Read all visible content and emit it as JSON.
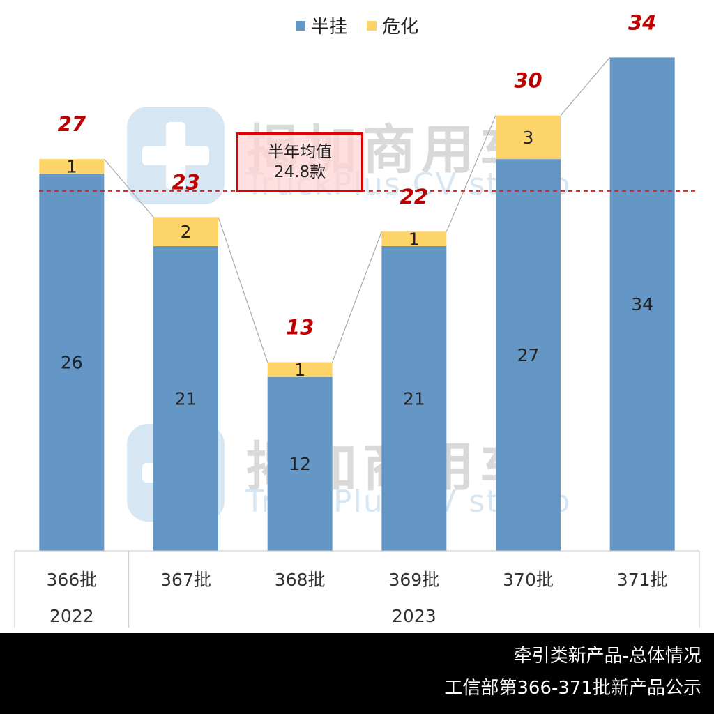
{
  "chart_data": {
    "type": "bar",
    "stacked": true,
    "categories": [
      "366批",
      "367批",
      "368批",
      "369批",
      "370批",
      "371批"
    ],
    "group_labels": [
      {
        "label": "2022",
        "span": [
          0,
          0
        ]
      },
      {
        "label": "2023",
        "span": [
          1,
          5
        ]
      }
    ],
    "series": [
      {
        "name": "半挂",
        "color": "#6497c6",
        "values": [
          26,
          21,
          12,
          21,
          27,
          34
        ]
      },
      {
        "name": "危化",
        "color": "#fdd46a",
        "values": [
          1,
          2,
          1,
          1,
          3,
          0
        ]
      }
    ],
    "totals": [
      27,
      23,
      13,
      22,
      30,
      34
    ],
    "total_label_color": "#c00000",
    "average": {
      "value": 24.8,
      "line_color": "#e02020",
      "style": "dashed",
      "label_line1": "半年均值",
      "label_line2": "24.8款"
    },
    "ylim": [
      0,
      37
    ],
    "legend_position": "top-center",
    "grid": false
  },
  "watermark": {
    "cn": "揭加商用车",
    "en": "TruckPlus CV studio"
  },
  "footer": {
    "line1": "牵引类新产品-总体情况",
    "line2": "工信部第366-371批新产品公示"
  }
}
